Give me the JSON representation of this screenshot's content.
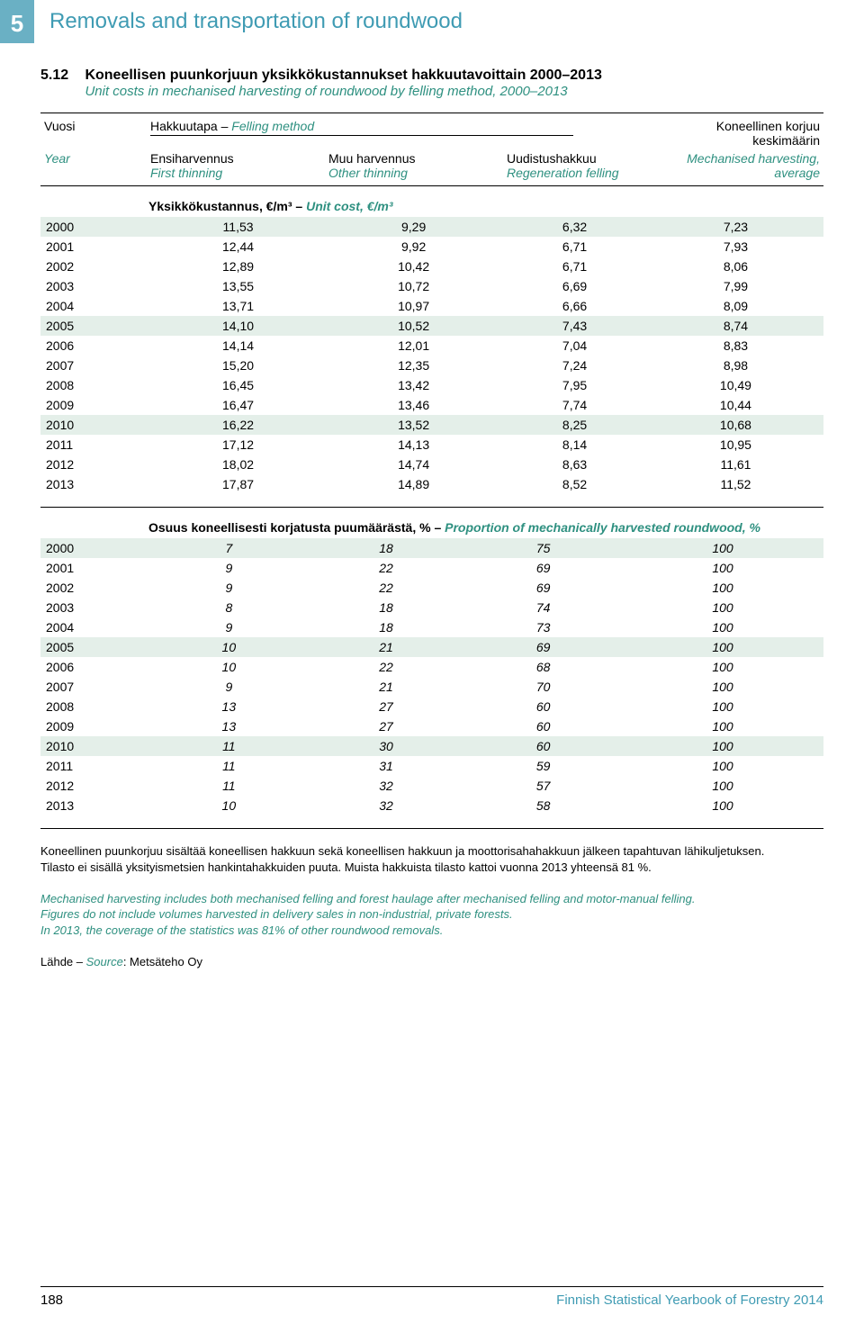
{
  "chapter": {
    "number": "5",
    "title": "Removals and transportation of roundwood"
  },
  "table": {
    "number": "5.12",
    "title_fi": "Koneellisen puunkorjuun yksikkökustannukset hakkuutavoittain 2000–2013",
    "title_en": "Unit costs in mechanised harvesting of roundwood by felling method, 2000–2013"
  },
  "headers": {
    "year_fi": "Vuosi",
    "year_en": "Year",
    "method_fi": "Hakkuutapa – ",
    "method_en": "Felling method",
    "c1_fi": "Ensiharvennus",
    "c1_en": "First thinning",
    "c2_fi": "Muu harvennus",
    "c2_en": "Other thinning",
    "c3_fi": "Uudistushakkuu",
    "c3_en": "Regeneration felling",
    "avg_fi": "Koneellinen korjuu keskimäärin",
    "avg_en": "Mechanised harvesting, average"
  },
  "section1": {
    "label_fi": "Yksikkökustannus, €/m³ – ",
    "label_en": "Unit cost, €/m³",
    "rows": [
      [
        "2000",
        "11,53",
        "9,29",
        "6,32",
        "7,23"
      ],
      [
        "2001",
        "12,44",
        "9,92",
        "6,71",
        "7,93"
      ],
      [
        "2002",
        "12,89",
        "10,42",
        "6,71",
        "8,06"
      ],
      [
        "2003",
        "13,55",
        "10,72",
        "6,69",
        "7,99"
      ],
      [
        "2004",
        "13,71",
        "10,97",
        "6,66",
        "8,09"
      ],
      [
        "2005",
        "14,10",
        "10,52",
        "7,43",
        "8,74"
      ],
      [
        "2006",
        "14,14",
        "12,01",
        "7,04",
        "8,83"
      ],
      [
        "2007",
        "15,20",
        "12,35",
        "7,24",
        "8,98"
      ],
      [
        "2008",
        "16,45",
        "13,42",
        "7,95",
        "10,49"
      ],
      [
        "2009",
        "16,47",
        "13,46",
        "7,74",
        "10,44"
      ],
      [
        "2010",
        "16,22",
        "13,52",
        "8,25",
        "10,68"
      ],
      [
        "2011",
        "17,12",
        "14,13",
        "8,14",
        "10,95"
      ],
      [
        "2012",
        "18,02",
        "14,74",
        "8,63",
        "11,61"
      ],
      [
        "2013",
        "17,87",
        "14,89",
        "8,52",
        "11,52"
      ]
    ]
  },
  "section2": {
    "label_fi": "Osuus koneellisesti korjatusta puumäärästä, % – ",
    "label_en": "Proportion of mechanically harvested roundwood, %",
    "rows": [
      [
        "2000",
        "7",
        "18",
        "75",
        "100"
      ],
      [
        "2001",
        "9",
        "22",
        "69",
        "100"
      ],
      [
        "2002",
        "9",
        "22",
        "69",
        "100"
      ],
      [
        "2003",
        "8",
        "18",
        "74",
        "100"
      ],
      [
        "2004",
        "9",
        "18",
        "73",
        "100"
      ],
      [
        "2005",
        "10",
        "21",
        "69",
        "100"
      ],
      [
        "2006",
        "10",
        "22",
        "68",
        "100"
      ],
      [
        "2007",
        "9",
        "21",
        "70",
        "100"
      ],
      [
        "2008",
        "13",
        "27",
        "60",
        "100"
      ],
      [
        "2009",
        "13",
        "27",
        "60",
        "100"
      ],
      [
        "2010",
        "11",
        "30",
        "60",
        "100"
      ],
      [
        "2011",
        "11",
        "31",
        "59",
        "100"
      ],
      [
        "2012",
        "11",
        "32",
        "57",
        "100"
      ],
      [
        "2013",
        "10",
        "32",
        "58",
        "100"
      ]
    ]
  },
  "notes": {
    "fi1": "Koneellinen puunkorjuu sisältää koneellisen hakkuun sekä koneellisen hakkuun ja moottorisahahakkuun jälkeen tapahtuvan lähikuljetuksen.",
    "fi2": "Tilasto ei sisällä yksityismetsien hankintahakkuiden puuta. Muista hakkuista tilasto kattoi vuonna 2013 yhteensä 81 %.",
    "en1": "Mechanised harvesting includes both mechanised felling and forest haulage after mechanised felling and motor-manual felling.",
    "en2": "Figures do not include volumes harvested in delivery sales in non-industrial, private forests.",
    "en3": "In 2013, the coverage of the statistics was 81% of other roundwood removals.",
    "source_label_fi": "Lähde – ",
    "source_label_en": "Source",
    "source_value": ": Metsäteho Oy"
  },
  "footer": {
    "page": "188",
    "publication": "Finnish Statistical Yearbook of Forestry 2014"
  },
  "style": {
    "band_color": "#e4efe9",
    "accent_color": "#3f9bb3",
    "en_color": "#2e9080",
    "section2_italic": true
  }
}
